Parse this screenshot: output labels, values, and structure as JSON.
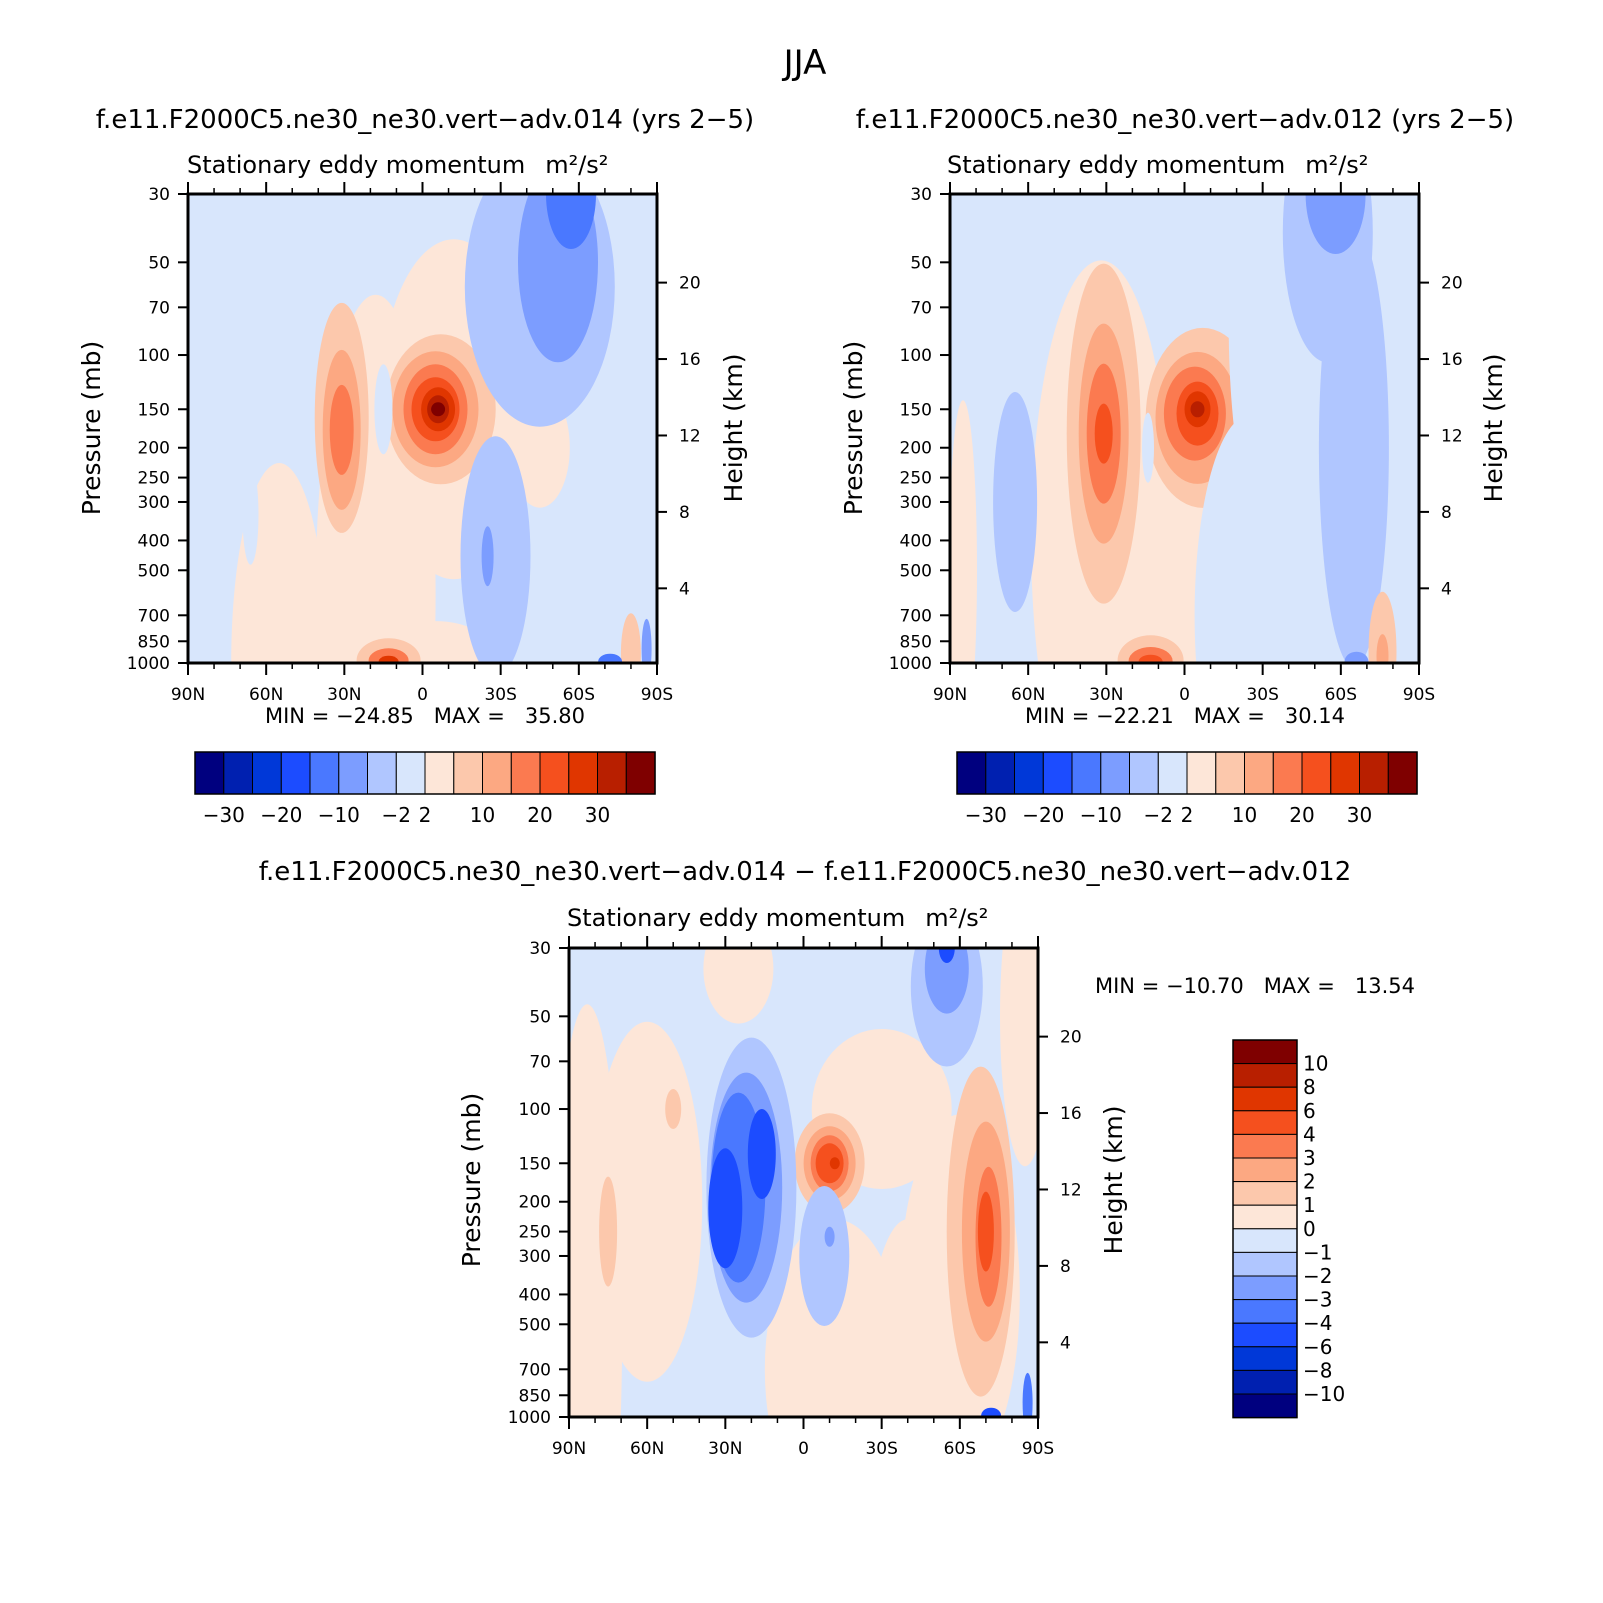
{
  "figure": {
    "title": "JJA",
    "panels": [
      {
        "case_title": "f.e11.F2000C5.ne30_ne30.vert−adv.014 (yrs 2−5)",
        "var_title": "Stationary eddy momentum",
        "units": "m²/s²",
        "min_max_text": "MIN = −24.85   MAX =   35.80"
      },
      {
        "case_title": "f.e11.F2000C5.ne30_ne30.vert−adv.012 (yrs 2−5)",
        "var_title": "Stationary eddy momentum",
        "units": "m²/s²",
        "min_max_text": "MIN = −22.21   MAX =   30.14"
      },
      {
        "case_title": "f.e11.F2000C5.ne30_ne30.vert−adv.014 − f.e11.F2000C5.ne30_ne30.vert−adv.012",
        "var_title": "Stationary eddy momentum",
        "units": "m²/s²",
        "min_max_text": "MIN = −10.70   MAX =   13.54"
      }
    ],
    "axes": {
      "left_label": "Pressure (mb)",
      "right_label": "Height (km)",
      "pressure_ticks": [
        "30",
        "50",
        "70",
        "100",
        "150",
        "200",
        "250",
        "300",
        "400",
        "500",
        "700",
        "850",
        "1000"
      ],
      "height_ticks": [
        "20",
        "16",
        "12",
        "8",
        "4"
      ],
      "lat_ticks": [
        "90N",
        "60N",
        "30N",
        "0",
        "30S",
        "60S",
        "90S"
      ]
    },
    "colorbar_abs": {
      "labels": [
        "−30",
        "−20",
        "−10",
        "−2",
        "2",
        "10",
        "20",
        "30"
      ]
    },
    "colorbar_diff": {
      "labels": [
        "10",
        "8",
        "6",
        "4",
        "3",
        "2",
        "1",
        "0",
        "−1",
        "−2",
        "−3",
        "−4",
        "−6",
        "−8",
        "−10"
      ]
    },
    "colors": {
      "palette": [
        "#00007f",
        "#0020b0",
        "#0038d8",
        "#1c4cff",
        "#4a78ff",
        "#7c9dff",
        "#b0c6ff",
        "#d8e6fc",
        "#fde6d8",
        "#fcc8ac",
        "#fca882",
        "#fb7a50",
        "#f5501e",
        "#e03600",
        "#b81f00",
        "#7f0000"
      ]
    }
  },
  "chart_data": [
    {
      "type": "heatmap",
      "title": "f.e11.F2000C5.ne30_ne30.vert−adv.014 (yrs 2−5)",
      "subtitle": "Stationary eddy momentum m²/s²",
      "xlabel": "",
      "ylabel": "Pressure (mb)",
      "y2label": "Height (km)",
      "x_range": [
        "90N",
        "90S"
      ],
      "y_range_mb": [
        30,
        1000
      ],
      "y_scale": "log",
      "contour_levels": [
        -30,
        -25,
        -20,
        -15,
        -10,
        -5,
        -2,
        0,
        2,
        5,
        10,
        15,
        20,
        25,
        30
      ],
      "min": -24.85,
      "max": 35.8,
      "features": [
        {
          "lat": 5,
          "p": 150,
          "value": 35
        },
        {
          "lat": 30,
          "p": 180,
          "value": 15
        },
        {
          "lat": 13,
          "p": 970,
          "value": 25
        },
        {
          "lat": -50,
          "p": 35,
          "value": -20
        },
        {
          "lat": -22,
          "p": 450,
          "value": -6
        },
        {
          "lat": 15,
          "p": 150,
          "value": -3
        },
        {
          "lat": -75,
          "p": 950,
          "value": 10
        },
        {
          "lat": -70,
          "p": 980,
          "value": -25
        }
      ]
    },
    {
      "type": "heatmap",
      "title": "f.e11.F2000C5.ne30_ne30.vert−adv.012 (yrs 2−5)",
      "subtitle": "Stationary eddy momentum m²/s²",
      "xlabel": "",
      "ylabel": "Pressure (mb)",
      "y2label": "Height (km)",
      "x_range": [
        "90N",
        "90S"
      ],
      "y_range_mb": [
        30,
        1000
      ],
      "y_scale": "log",
      "contour_levels": [
        -30,
        -25,
        -20,
        -15,
        -10,
        -5,
        -2,
        0,
        2,
        5,
        10,
        15,
        20,
        25,
        30
      ],
      "min": -22.21,
      "max": 30.14,
      "features": [
        {
          "lat": 5,
          "p": 150,
          "value": 30
        },
        {
          "lat": 30,
          "p": 180,
          "value": 20
        },
        {
          "lat": 13,
          "p": 970,
          "value": 22
        },
        {
          "lat": -57,
          "p": 40,
          "value": -15
        },
        {
          "lat": -70,
          "p": 250,
          "value": -6
        },
        {
          "lat": 62,
          "p": 250,
          "value": -4
        },
        {
          "lat": -68,
          "p": 980,
          "value": -20
        }
      ]
    },
    {
      "type": "heatmap",
      "title": "f.e11.F2000C5.ne30_ne30.vert−adv.014 − f.e11.F2000C5.ne30_ne30.vert−adv.012",
      "subtitle": "Stationary eddy momentum m²/s²",
      "xlabel": "",
      "ylabel": "Pressure (mb)",
      "y2label": "Height (km)",
      "x_range": [
        "90N",
        "90S"
      ],
      "y_range_mb": [
        30,
        1000
      ],
      "y_scale": "log",
      "contour_levels": [
        -10,
        -8,
        -6,
        -4,
        -3,
        -2,
        -1,
        0,
        1,
        2,
        3,
        4,
        6,
        8,
        10
      ],
      "min": -10.7,
      "max": 13.54,
      "features": [
        {
          "lat": 20,
          "p": 150,
          "value": -7
        },
        {
          "lat": 35,
          "p": 210,
          "value": -5
        },
        {
          "lat": -10,
          "p": 150,
          "value": 6
        },
        {
          "lat": -70,
          "p": 250,
          "value": 4
        },
        {
          "lat": -55,
          "p": 40,
          "value": -4
        },
        {
          "lat": -8,
          "p": 300,
          "value": -2
        },
        {
          "lat": 75,
          "p": 250,
          "value": 1.5
        },
        {
          "lat": 50,
          "p": 100,
          "value": 1.5
        }
      ]
    }
  ]
}
